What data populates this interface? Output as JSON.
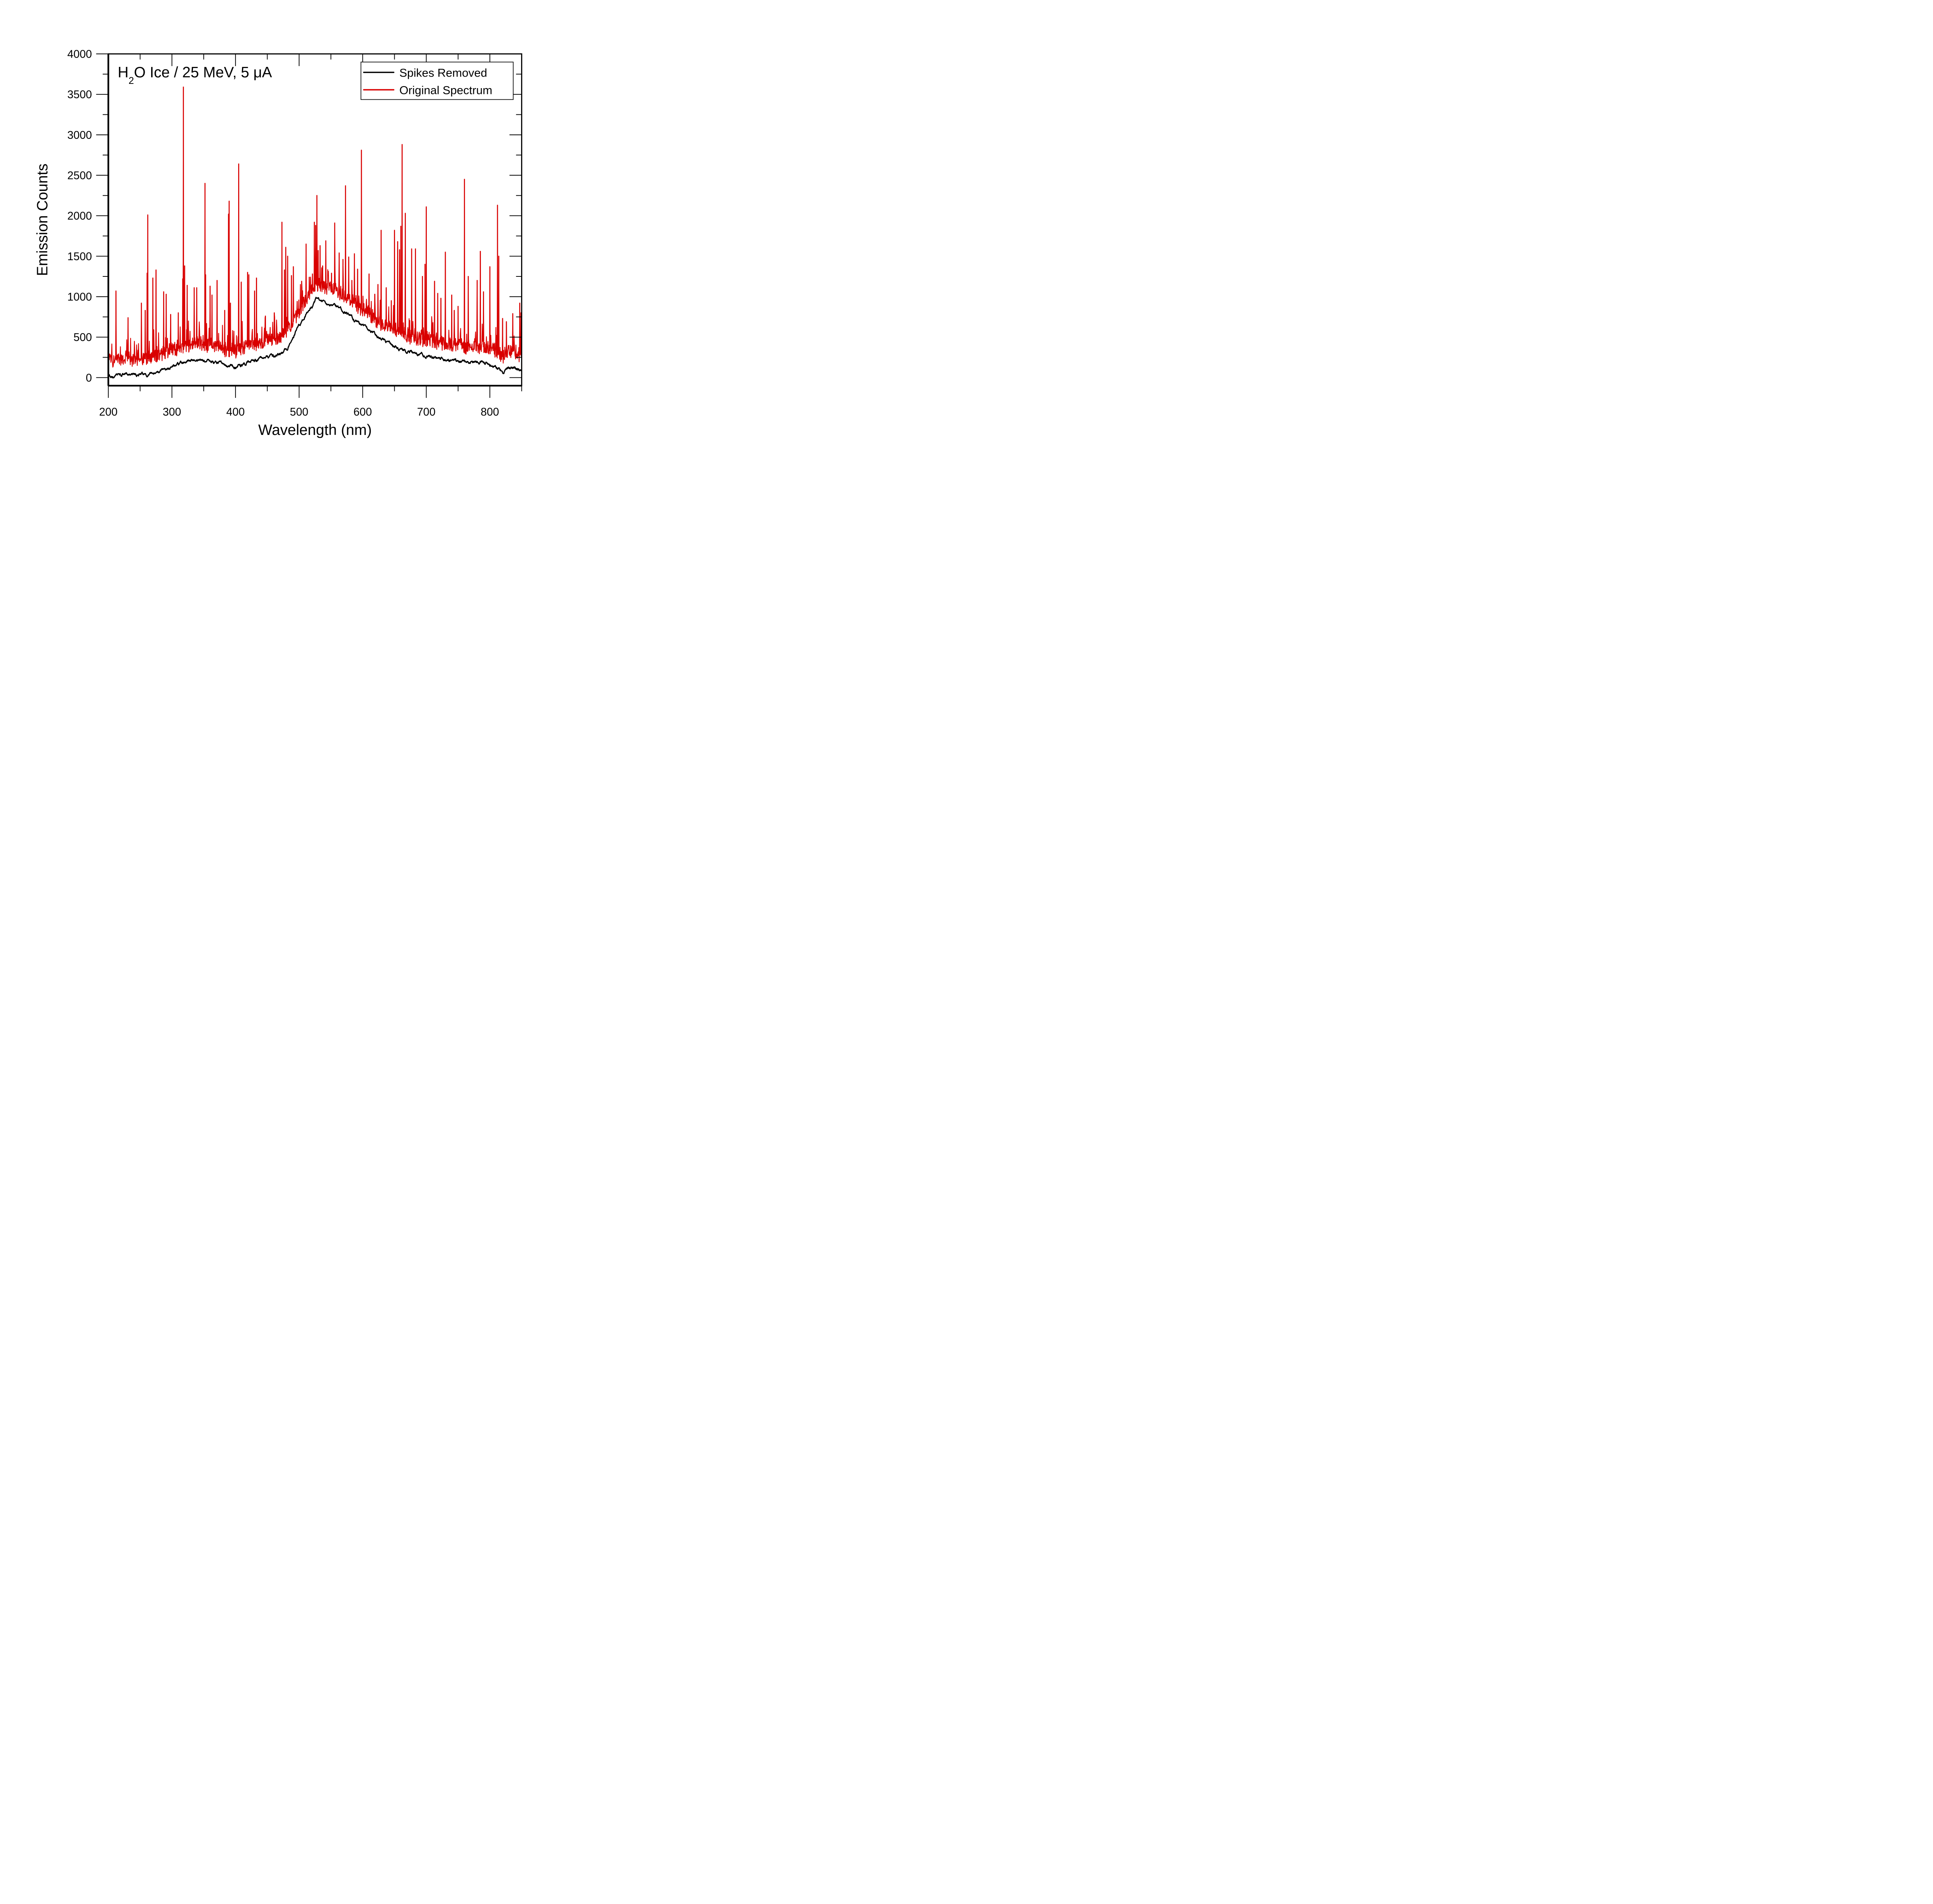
{
  "chart_data": {
    "type": "line",
    "title": "",
    "annotation": {
      "prefix": "H",
      "subscript": "2",
      "suffix": "O Ice / 25 MeV, 5 μA"
    },
    "xlabel": "Wavelength (nm)",
    "ylabel": "Emission Counts",
    "xlim": [
      200,
      850
    ],
    "ylim": [
      -100,
      4000
    ],
    "x_ticks": [
      200,
      300,
      400,
      500,
      600,
      700,
      800
    ],
    "x_tick_labels": [
      "200",
      "300",
      "400",
      "500",
      "600",
      "700",
      "800"
    ],
    "x_minor_step": 50,
    "y_ticks": [
      0,
      500,
      1000,
      1500,
      2000,
      2500,
      3000,
      3500,
      4000
    ],
    "y_tick_labels": [
      "0",
      "500",
      "1000",
      "1500",
      "2000",
      "2500",
      "3000",
      "3500",
      "4000"
    ],
    "y_minor_step": 250,
    "grid": false,
    "legend": {
      "placement": "top-right",
      "entries": [
        {
          "label": "Spikes Removed",
          "color": "#000000"
        },
        {
          "label": "Original Spectrum",
          "color": "#d90000"
        }
      ]
    },
    "series": [
      {
        "name": "Spikes Removed",
        "color": "#000000",
        "baseline_points": [
          [
            200,
            20
          ],
          [
            210,
            10
          ],
          [
            215,
            50
          ],
          [
            220,
            30
          ],
          [
            230,
            40
          ],
          [
            240,
            20
          ],
          [
            250,
            40
          ],
          [
            260,
            30
          ],
          [
            270,
            50
          ],
          [
            280,
            60
          ],
          [
            290,
            120
          ],
          [
            300,
            150
          ],
          [
            310,
            170
          ],
          [
            320,
            190
          ],
          [
            330,
            210
          ],
          [
            340,
            230
          ],
          [
            350,
            210
          ],
          [
            360,
            200
          ],
          [
            370,
            190
          ],
          [
            380,
            170
          ],
          [
            390,
            130
          ],
          [
            400,
            140
          ],
          [
            410,
            160
          ],
          [
            420,
            190
          ],
          [
            430,
            210
          ],
          [
            440,
            240
          ],
          [
            450,
            250
          ],
          [
            460,
            260
          ],
          [
            470,
            290
          ],
          [
            480,
            350
          ],
          [
            490,
            480
          ],
          [
            500,
            620
          ],
          [
            510,
            750
          ],
          [
            520,
            880
          ],
          [
            527,
            970
          ],
          [
            535,
            930
          ],
          [
            545,
            920
          ],
          [
            555,
            900
          ],
          [
            565,
            850
          ],
          [
            575,
            790
          ],
          [
            585,
            730
          ],
          [
            595,
            660
          ],
          [
            605,
            620
          ],
          [
            615,
            540
          ],
          [
            625,
            490
          ],
          [
            635,
            450
          ],
          [
            645,
            410
          ],
          [
            655,
            370
          ],
          [
            665,
            340
          ],
          [
            675,
            310
          ],
          [
            685,
            290
          ],
          [
            695,
            270
          ],
          [
            705,
            260
          ],
          [
            715,
            250
          ],
          [
            725,
            240
          ],
          [
            735,
            220
          ],
          [
            745,
            210
          ],
          [
            755,
            200
          ],
          [
            765,
            190
          ],
          [
            775,
            200
          ],
          [
            785,
            190
          ],
          [
            795,
            170
          ],
          [
            805,
            150
          ],
          [
            815,
            110
          ],
          [
            820,
            60
          ],
          [
            825,
            100
          ],
          [
            830,
            130
          ],
          [
            840,
            120
          ],
          [
            848,
            90
          ],
          [
            850,
            60
          ]
        ]
      },
      {
        "name": "Original Spectrum",
        "color": "#d90000",
        "offset_from_baseline": 200,
        "spikes": [
          [
            212,
            1070
          ],
          [
            231,
            740
          ],
          [
            252,
            920
          ],
          [
            258,
            830
          ],
          [
            261,
            1290
          ],
          [
            262,
            2010
          ],
          [
            270,
            1230
          ],
          [
            275,
            1330
          ],
          [
            287,
            1060
          ],
          [
            291,
            1030
          ],
          [
            298,
            780
          ],
          [
            310,
            800
          ],
          [
            317,
            1220
          ],
          [
            318,
            3590
          ],
          [
            320,
            1380
          ],
          [
            324,
            1140
          ],
          [
            335,
            1110
          ],
          [
            339,
            1110
          ],
          [
            352,
            2400
          ],
          [
            353,
            1270
          ],
          [
            360,
            1130
          ],
          [
            363,
            1020
          ],
          [
            371,
            1200
          ],
          [
            383,
            830
          ],
          [
            389,
            2020
          ],
          [
            390,
            2180
          ],
          [
            392,
            920
          ],
          [
            405,
            2640
          ],
          [
            409,
            1180
          ],
          [
            419,
            1300
          ],
          [
            421,
            1270
          ],
          [
            430,
            1070
          ],
          [
            433,
            1230
          ],
          [
            447,
            760
          ],
          [
            461,
            800
          ],
          [
            473,
            1920
          ],
          [
            477,
            1330
          ],
          [
            479,
            1610
          ],
          [
            482,
            1500
          ],
          [
            488,
            1260
          ],
          [
            491,
            1370
          ],
          [
            497,
            940
          ],
          [
            504,
            1190
          ],
          [
            511,
            1650
          ],
          [
            516,
            1240
          ],
          [
            521,
            1280
          ],
          [
            524,
            1920
          ],
          [
            526,
            1880
          ],
          [
            528,
            2250
          ],
          [
            530,
            1570
          ],
          [
            533,
            1630
          ],
          [
            537,
            1380
          ],
          [
            542,
            1690
          ],
          [
            551,
            1290
          ],
          [
            556,
            1910
          ],
          [
            563,
            1540
          ],
          [
            569,
            1460
          ],
          [
            573,
            2370
          ],
          [
            578,
            1490
          ],
          [
            583,
            1200
          ],
          [
            587,
            1530
          ],
          [
            592,
            1340
          ],
          [
            598,
            2810
          ],
          [
            610,
            1280
          ],
          [
            619,
            1030
          ],
          [
            624,
            1150
          ],
          [
            629,
            1820
          ],
          [
            637,
            1110
          ],
          [
            645,
            950
          ],
          [
            650,
            1820
          ],
          [
            655,
            1680
          ],
          [
            658,
            1580
          ],
          [
            660,
            1870
          ],
          [
            662,
            2880
          ],
          [
            667,
            2030
          ],
          [
            677,
            1590
          ],
          [
            683,
            1590
          ],
          [
            694,
            1250
          ],
          [
            698,
            1400
          ],
          [
            700,
            2110
          ],
          [
            713,
            1190
          ],
          [
            718,
            1040
          ],
          [
            723,
            980
          ],
          [
            730,
            1550
          ],
          [
            740,
            1020
          ],
          [
            744,
            830
          ],
          [
            750,
            880
          ],
          [
            760,
            2450
          ],
          [
            766,
            1250
          ],
          [
            780,
            1200
          ],
          [
            785,
            1560
          ],
          [
            790,
            1060
          ],
          [
            800,
            1370
          ],
          [
            812,
            2130
          ],
          [
            814,
            1500
          ],
          [
            820,
            730
          ],
          [
            826,
            690
          ],
          [
            836,
            790
          ],
          [
            847,
            920
          ],
          [
            849,
            800
          ]
        ]
      }
    ]
  }
}
